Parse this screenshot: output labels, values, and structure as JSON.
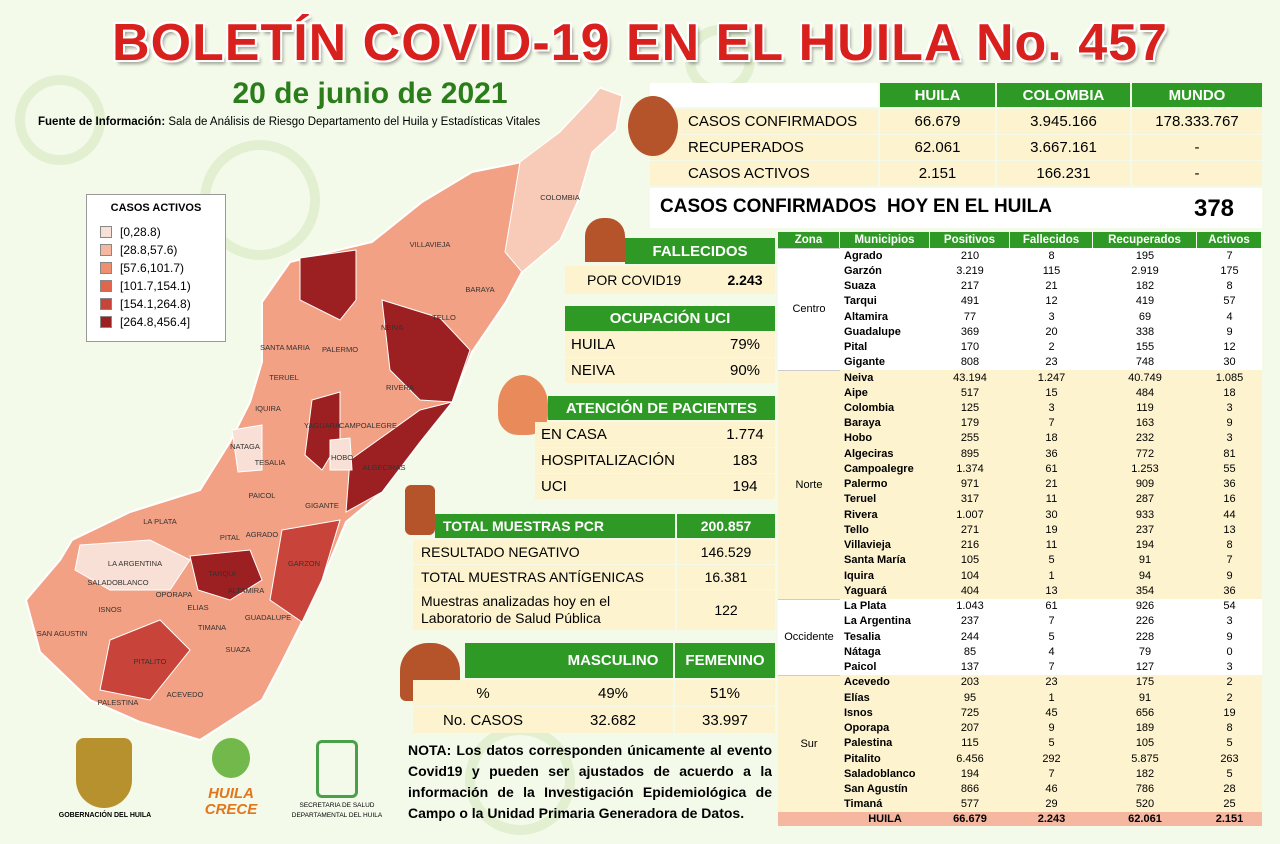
{
  "header": {
    "title": "BOLETÍN COVID-19 EN EL HUILA No. 457",
    "date": "20 de junio de 2021",
    "source_label": "Fuente de Información:",
    "source_text": "Sala de Análisis de Riesgo Departamento del Huila y Estadísticas Vitales"
  },
  "legend": {
    "title": "CASOS ACTIVOS",
    "items": [
      {
        "label": "[0,28.8)",
        "color": "#f8e0d6"
      },
      {
        "label": "[28.8,57.6)",
        "color": "#f5b79f"
      },
      {
        "label": "[57.6,101.7)",
        "color": "#ee8f6f"
      },
      {
        "label": "[101.7,154.1)",
        "color": "#e0654b"
      },
      {
        "label": "[154.1,264.8)",
        "color": "#c8443a"
      },
      {
        "label": "[264.8,456.4]",
        "color": "#9c1f22"
      }
    ]
  },
  "map": {
    "labels": [
      "COLOMBIA",
      "VILLAVIEJA",
      "BARAYA",
      "TELLO",
      "NEIVA",
      "SANTA MARIA",
      "PALERMO",
      "TERUEL",
      "RIVERA",
      "IQUIRA",
      "YAGUARA",
      "CAMPOALEGRE",
      "NATAGA",
      "TESALIA",
      "HOBO",
      "ALGECIRAS",
      "PAICOL",
      "GIGANTE",
      "LA PLATA",
      "AGRADO",
      "PITAL",
      "LA ARGENTINA",
      "GARZON",
      "TARQUI",
      "SALADOBLANCO",
      "OPORAPA",
      "ELIAS",
      "ISNOS",
      "ALTAMIRA",
      "GUADALUPE",
      "SAN AGUSTIN",
      "TIMANA",
      "SUAZA",
      "PITALITO",
      "ACEVEDO",
      "PALESTINA"
    ]
  },
  "summary": {
    "headers": [
      "HUILA",
      "COLOMBIA",
      "MUNDO"
    ],
    "rows": [
      {
        "label": "CASOS CONFIRMADOS",
        "values": [
          "66.679",
          "3.945.166",
          "178.333.767"
        ]
      },
      {
        "label": "RECUPERADOS",
        "values": [
          "62.061",
          "3.667.161",
          "-"
        ]
      },
      {
        "label": "CASOS ACTIVOS",
        "values": [
          "2.151",
          "166.231",
          "-"
        ]
      }
    ]
  },
  "today": {
    "label": "CASOS CONFIRMADOS  HOY EN EL HUILA",
    "value": "378"
  },
  "deaths": {
    "title": "FALLECIDOS",
    "label": "POR COVID19",
    "value": "2.243"
  },
  "icu": {
    "title": "OCUPACIÓN UCI",
    "rows": [
      [
        "HUILA",
        "79%"
      ],
      [
        "NEIVA",
        "90%"
      ]
    ]
  },
  "care": {
    "title": "ATENCIÓN DE PACIENTES",
    "rows": [
      [
        "EN CASA",
        "1.774"
      ],
      [
        "HOSPITALIZACIÓN",
        "183"
      ],
      [
        "UCI",
        "194"
      ]
    ]
  },
  "pcr": {
    "title": "TOTAL MUESTRAS PCR",
    "total": "200.857",
    "rows": [
      [
        "RESULTADO  NEGATIVO",
        "146.529"
      ],
      [
        "TOTAL MUESTRAS  ANTÍGENICAS",
        "16.381"
      ],
      [
        "Muestras analizadas hoy en el Laboratorio de Salud Pública",
        "122"
      ]
    ]
  },
  "gender": {
    "headers": [
      "MASCULINO",
      "FEMENINO"
    ],
    "rows": [
      [
        "%",
        "49%",
        "51%"
      ],
      [
        "No. CASOS",
        "32.682",
        "33.997"
      ]
    ]
  },
  "note": {
    "label": "NOTA:",
    "text": "Los datos corresponden únicamente al evento Covid19 y pueden ser ajustados de acuerdo a la información de la Investigación Epidemiológica de Campo o la Unidad Primaria Generadora de Datos."
  },
  "logos": {
    "gobernacion": "GOBERNACIÓN DEL HUILA",
    "huila": "HUILA",
    "crece": "CRECE",
    "secretaria": "SECRETARIA DE SALUD",
    "departamental": "DEPARTAMENTAL DEL HUILA"
  },
  "municipal": {
    "headers": [
      "Zona",
      "Municipios",
      "Positivos",
      "Fallecidos",
      "Recuperados",
      "Activos"
    ],
    "zones": [
      {
        "zone": "Centro",
        "rows": [
          [
            "Agrado",
            "210",
            "8",
            "195",
            "7"
          ],
          [
            "Garzón",
            "3.219",
            "115",
            "2.919",
            "175"
          ],
          [
            "Suaza",
            "217",
            "21",
            "182",
            "8"
          ],
          [
            "Tarqui",
            "491",
            "12",
            "419",
            "57"
          ],
          [
            "Altamira",
            "77",
            "3",
            "69",
            "4"
          ],
          [
            "Guadalupe",
            "369",
            "20",
            "338",
            "9"
          ],
          [
            "Pital",
            "170",
            "2",
            "155",
            "12"
          ],
          [
            "Gigante",
            "808",
            "23",
            "748",
            "30"
          ]
        ]
      },
      {
        "zone": "Norte",
        "rows": [
          [
            "Neiva",
            "43.194",
            "1.247",
            "40.749",
            "1.085"
          ],
          [
            "Aipe",
            "517",
            "15",
            "484",
            "18"
          ],
          [
            "Colombia",
            "125",
            "3",
            "119",
            "3"
          ],
          [
            "Baraya",
            "179",
            "7",
            "163",
            "9"
          ],
          [
            "Hobo",
            "255",
            "18",
            "232",
            "3"
          ],
          [
            "Algeciras",
            "895",
            "36",
            "772",
            "81"
          ],
          [
            "Campoalegre",
            "1.374",
            "61",
            "1.253",
            "55"
          ],
          [
            "Palermo",
            "971",
            "21",
            "909",
            "36"
          ],
          [
            "Teruel",
            "317",
            "11",
            "287",
            "16"
          ],
          [
            "Rivera",
            "1.007",
            "30",
            "933",
            "44"
          ],
          [
            "Tello",
            "271",
            "19",
            "237",
            "13"
          ],
          [
            "Villavieja",
            "216",
            "11",
            "194",
            "8"
          ],
          [
            "Santa María",
            "105",
            "5",
            "91",
            "7"
          ],
          [
            "Iquira",
            "104",
            "1",
            "94",
            "9"
          ],
          [
            "Yaguará",
            "404",
            "13",
            "354",
            "36"
          ]
        ]
      },
      {
        "zone": "Occidente",
        "rows": [
          [
            "La Plata",
            "1.043",
            "61",
            "926",
            "54"
          ],
          [
            "La Argentina",
            "237",
            "7",
            "226",
            "3"
          ],
          [
            "Tesalia",
            "244",
            "5",
            "228",
            "9"
          ],
          [
            "Nátaga",
            "85",
            "4",
            "79",
            "0"
          ],
          [
            "Paicol",
            "137",
            "7",
            "127",
            "3"
          ]
        ]
      },
      {
        "zone": "Sur",
        "rows": [
          [
            "Acevedo",
            "203",
            "23",
            "175",
            "2"
          ],
          [
            "Elías",
            "95",
            "1",
            "91",
            "2"
          ],
          [
            "Isnos",
            "725",
            "45",
            "656",
            "19"
          ],
          [
            "Oporapa",
            "207",
            "9",
            "189",
            "8"
          ],
          [
            "Palestina",
            "115",
            "5",
            "105",
            "5"
          ],
          [
            "Pitalito",
            "6.456",
            "292",
            "5.875",
            "263"
          ],
          [
            "Saladoblanco",
            "194",
            "7",
            "182",
            "5"
          ],
          [
            "San Agustín",
            "866",
            "46",
            "786",
            "28"
          ],
          [
            "Timaná",
            "577",
            "29",
            "520",
            "25"
          ]
        ]
      }
    ],
    "total": [
      "HUILA",
      "66.679",
      "2.243",
      "62.061",
      "2.151"
    ]
  }
}
